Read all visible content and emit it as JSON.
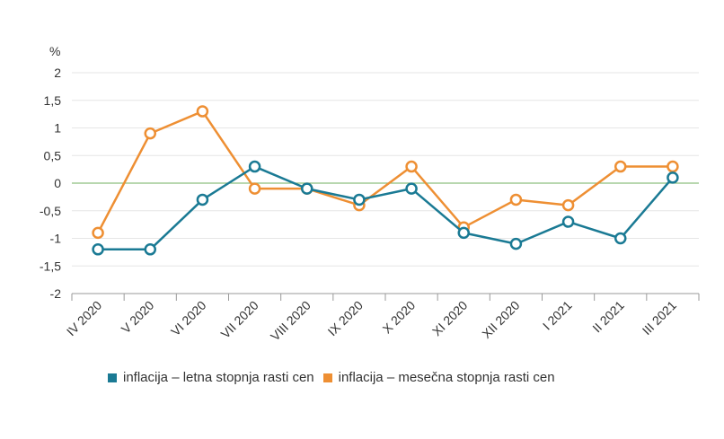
{
  "chart_data": {
    "type": "line",
    "unit": "%",
    "categories": [
      "IV 2020",
      "V 2020",
      "VI 2020",
      "VII 2020",
      "VIII 2020",
      "IX 2020",
      "X 2020",
      "XI 2020",
      "XII 2020",
      "I 2021",
      "II 2021",
      "III 2021"
    ],
    "ylim": [
      -2,
      2
    ],
    "yticks": [
      2,
      1.5,
      1,
      0.5,
      0,
      -0.5,
      -1,
      -1.5,
      -2
    ],
    "ytick_labels": [
      "2",
      "1,5",
      "1",
      "0,5",
      "0",
      "-0,5",
      "-1",
      "-1,5",
      "-2"
    ],
    "grid": true,
    "legend_position": "bottom",
    "series": [
      {
        "name": "inflacija – letna stopnja rasti cen",
        "color": "#1a7a94",
        "values": [
          -1.2,
          -1.2,
          -0.3,
          0.3,
          -0.1,
          -0.3,
          -0.1,
          -0.9,
          -1.1,
          -0.7,
          -1.0,
          0.1
        ]
      },
      {
        "name": "inflacija – mesečna stopnja rasti cen",
        "color": "#ee8f33",
        "values": [
          -0.9,
          0.9,
          1.3,
          -0.1,
          -0.1,
          -0.4,
          0.3,
          -0.8,
          -0.3,
          -0.4,
          0.3,
          0.3
        ]
      }
    ]
  }
}
